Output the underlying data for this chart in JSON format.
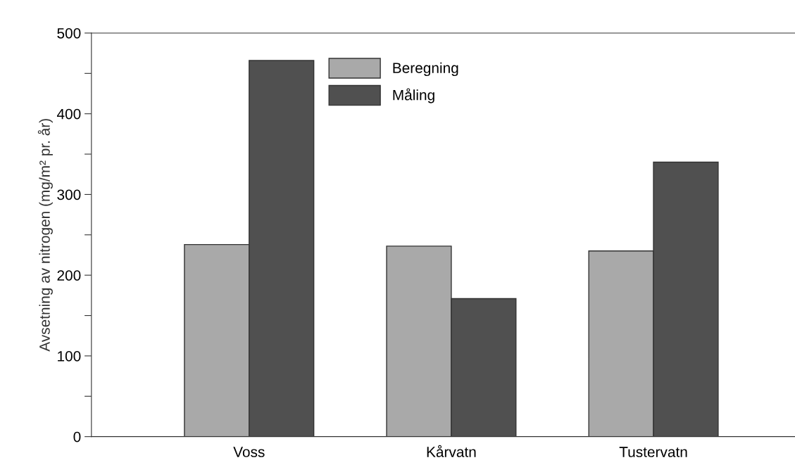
{
  "chart_data": {
    "type": "bar",
    "ylabel": "Avsetning av nitrogen (mg/m² pr. år)",
    "categories": [
      "Voss",
      "Kårvatn",
      "Tustervatn"
    ],
    "series": [
      {
        "name": "Beregning",
        "color": "#a9a9a9",
        "values": [
          238,
          236,
          230
        ]
      },
      {
        "name": "Måling",
        "color": "#505050",
        "values": [
          466,
          171,
          340
        ]
      }
    ],
    "ylim": [
      0,
      500
    ],
    "yticks": [
      0,
      {
        "value": 50,
        "label": null
      },
      100,
      {
        "value": 150,
        "label": null
      },
      200,
      {
        "value": 250,
        "label": null
      },
      300,
      {
        "value": 350,
        "label": null
      },
      400,
      {
        "value": 450,
        "label": null
      },
      500
    ],
    "grid": false,
    "legend": "top"
  }
}
